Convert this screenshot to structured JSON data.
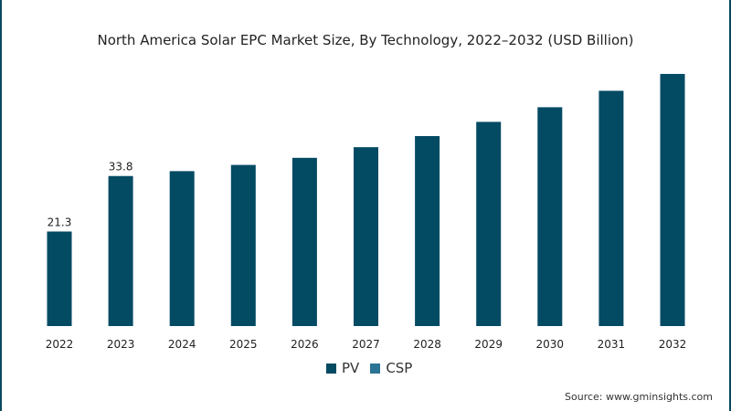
{
  "chart_data": {
    "type": "bar",
    "title": "North America Solar EPC Market Size, By Technology, 2022–2032 (USD Billion)",
    "categories": [
      "2022",
      "2023",
      "2024",
      "2025",
      "2026",
      "2027",
      "2028",
      "2029",
      "2030",
      "2031",
      "2032"
    ],
    "series": [
      {
        "name": "PV",
        "color": "#034a63",
        "values": [
          21.3,
          33.8,
          34.9,
          36.3,
          37.9,
          40.3,
          42.8,
          46.0,
          49.3,
          53.0,
          56.8
        ]
      },
      {
        "name": "CSP",
        "color": "#2b7495",
        "values": [
          0,
          0,
          0,
          0,
          0,
          0,
          0,
          0,
          0,
          0,
          0
        ]
      }
    ],
    "data_labels": [
      {
        "category": "2022",
        "text": "21.3"
      },
      {
        "category": "2023",
        "text": "33.8"
      }
    ],
    "xlabel": "",
    "ylabel": "",
    "ylim": [
      0,
      60
    ],
    "grid": false,
    "legend": "bottom-center"
  },
  "source": "Source: www.gminsights.com"
}
